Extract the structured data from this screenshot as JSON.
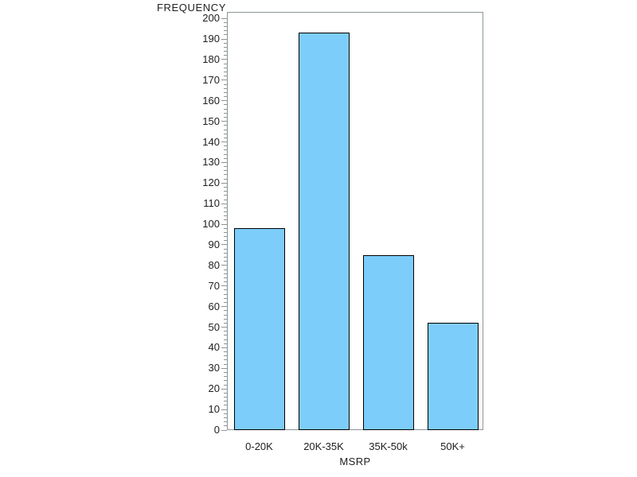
{
  "chart_data": {
    "type": "bar",
    "title": "",
    "ylabel": "FREQUENCY",
    "xlabel": "MSRP",
    "categories": [
      "0-20K",
      "20K-35K",
      "35K-50k",
      "50K+"
    ],
    "values": [
      98,
      193,
      85,
      52
    ],
    "ylim": [
      0,
      200
    ],
    "y_major_step": 10,
    "y_minor_step": 2,
    "grid": false,
    "legend": "none",
    "colors": {
      "bar_fill": "#7dcdfa",
      "bar_border": "#000000",
      "axis_line": "#8c9496",
      "text": "#202020",
      "background": "#ffffff"
    }
  }
}
